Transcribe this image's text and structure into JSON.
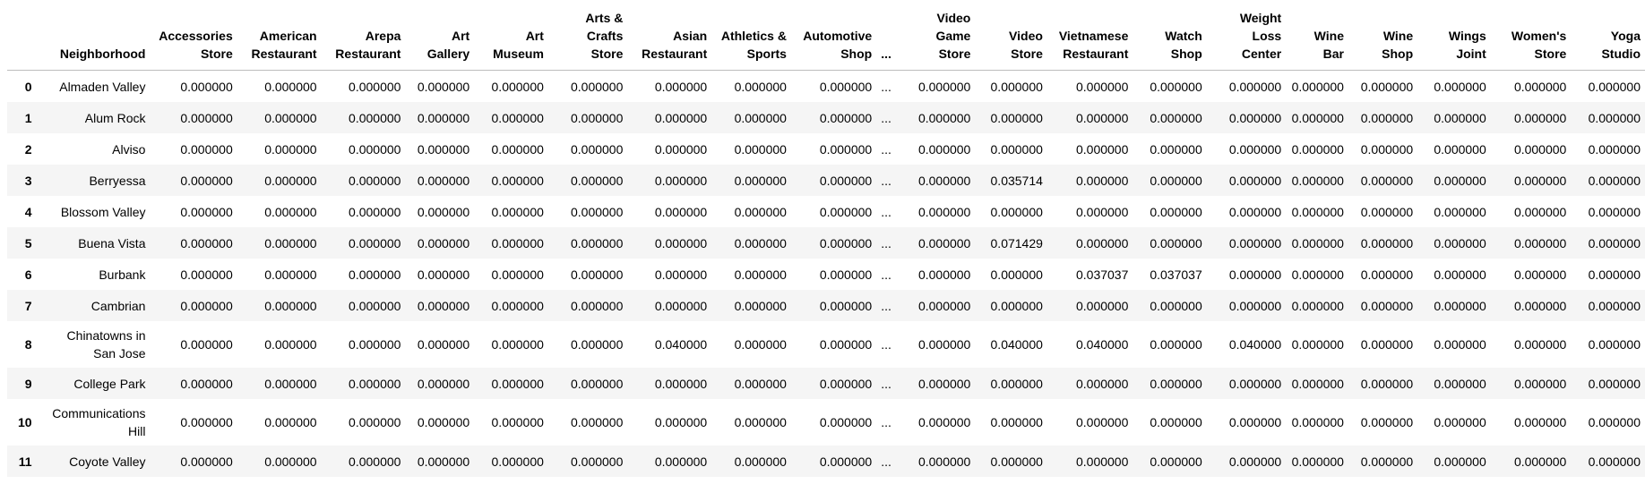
{
  "table": {
    "index_header": "",
    "columns": [
      "Neighborhood",
      "Accessories Store",
      "American Restaurant",
      "Arepa Restaurant",
      "Art Gallery",
      "Art Museum",
      "Arts & Crafts Store",
      "Asian Restaurant",
      "Athletics & Sports",
      "Automotive Shop",
      "...",
      "Video Game Store",
      "Video Store",
      "Vietnamese Restaurant",
      "Watch Shop",
      "Weight Loss Center",
      "Wine Bar",
      "Wine Shop",
      "Wings Joint",
      "Women's Store",
      "Yoga Studio"
    ],
    "rows": [
      {
        "index": "0",
        "cells": [
          "Almaden Valley",
          "0.000000",
          "0.000000",
          "0.000000",
          "0.000000",
          "0.000000",
          "0.000000",
          "0.000000",
          "0.000000",
          "0.000000",
          "...",
          "0.000000",
          "0.000000",
          "0.000000",
          "0.000000",
          "0.000000",
          "0.000000",
          "0.000000",
          "0.000000",
          "0.000000",
          "0.000000"
        ]
      },
      {
        "index": "1",
        "cells": [
          "Alum Rock",
          "0.000000",
          "0.000000",
          "0.000000",
          "0.000000",
          "0.000000",
          "0.000000",
          "0.000000",
          "0.000000",
          "0.000000",
          "...",
          "0.000000",
          "0.000000",
          "0.000000",
          "0.000000",
          "0.000000",
          "0.000000",
          "0.000000",
          "0.000000",
          "0.000000",
          "0.000000"
        ]
      },
      {
        "index": "2",
        "cells": [
          "Alviso",
          "0.000000",
          "0.000000",
          "0.000000",
          "0.000000",
          "0.000000",
          "0.000000",
          "0.000000",
          "0.000000",
          "0.000000",
          "...",
          "0.000000",
          "0.000000",
          "0.000000",
          "0.000000",
          "0.000000",
          "0.000000",
          "0.000000",
          "0.000000",
          "0.000000",
          "0.000000"
        ]
      },
      {
        "index": "3",
        "cells": [
          "Berryessa",
          "0.000000",
          "0.000000",
          "0.000000",
          "0.000000",
          "0.000000",
          "0.000000",
          "0.000000",
          "0.000000",
          "0.000000",
          "...",
          "0.000000",
          "0.035714",
          "0.000000",
          "0.000000",
          "0.000000",
          "0.000000",
          "0.000000",
          "0.000000",
          "0.000000",
          "0.000000"
        ]
      },
      {
        "index": "4",
        "cells": [
          "Blossom Valley",
          "0.000000",
          "0.000000",
          "0.000000",
          "0.000000",
          "0.000000",
          "0.000000",
          "0.000000",
          "0.000000",
          "0.000000",
          "...",
          "0.000000",
          "0.000000",
          "0.000000",
          "0.000000",
          "0.000000",
          "0.000000",
          "0.000000",
          "0.000000",
          "0.000000",
          "0.000000"
        ]
      },
      {
        "index": "5",
        "cells": [
          "Buena Vista",
          "0.000000",
          "0.000000",
          "0.000000",
          "0.000000",
          "0.000000",
          "0.000000",
          "0.000000",
          "0.000000",
          "0.000000",
          "...",
          "0.000000",
          "0.071429",
          "0.000000",
          "0.000000",
          "0.000000",
          "0.000000",
          "0.000000",
          "0.000000",
          "0.000000",
          "0.000000"
        ]
      },
      {
        "index": "6",
        "cells": [
          "Burbank",
          "0.000000",
          "0.000000",
          "0.000000",
          "0.000000",
          "0.000000",
          "0.000000",
          "0.000000",
          "0.000000",
          "0.000000",
          "...",
          "0.000000",
          "0.000000",
          "0.037037",
          "0.037037",
          "0.000000",
          "0.000000",
          "0.000000",
          "0.000000",
          "0.000000",
          "0.000000"
        ]
      },
      {
        "index": "7",
        "cells": [
          "Cambrian",
          "0.000000",
          "0.000000",
          "0.000000",
          "0.000000",
          "0.000000",
          "0.000000",
          "0.000000",
          "0.000000",
          "0.000000",
          "...",
          "0.000000",
          "0.000000",
          "0.000000",
          "0.000000",
          "0.000000",
          "0.000000",
          "0.000000",
          "0.000000",
          "0.000000",
          "0.000000"
        ]
      },
      {
        "index": "8",
        "cells": [
          "Chinatowns in San Jose",
          "0.000000",
          "0.000000",
          "0.000000",
          "0.000000",
          "0.000000",
          "0.000000",
          "0.040000",
          "0.000000",
          "0.000000",
          "...",
          "0.000000",
          "0.040000",
          "0.040000",
          "0.000000",
          "0.040000",
          "0.000000",
          "0.000000",
          "0.000000",
          "0.000000",
          "0.000000"
        ]
      },
      {
        "index": "9",
        "cells": [
          "College Park",
          "0.000000",
          "0.000000",
          "0.000000",
          "0.000000",
          "0.000000",
          "0.000000",
          "0.000000",
          "0.000000",
          "0.000000",
          "...",
          "0.000000",
          "0.000000",
          "0.000000",
          "0.000000",
          "0.000000",
          "0.000000",
          "0.000000",
          "0.000000",
          "0.000000",
          "0.000000"
        ]
      },
      {
        "index": "10",
        "cells": [
          "Communications Hill",
          "0.000000",
          "0.000000",
          "0.000000",
          "0.000000",
          "0.000000",
          "0.000000",
          "0.000000",
          "0.000000",
          "0.000000",
          "...",
          "0.000000",
          "0.000000",
          "0.000000",
          "0.000000",
          "0.000000",
          "0.000000",
          "0.000000",
          "0.000000",
          "0.000000",
          "0.000000"
        ]
      },
      {
        "index": "11",
        "cells": [
          "Coyote Valley",
          "0.000000",
          "0.000000",
          "0.000000",
          "0.000000",
          "0.000000",
          "0.000000",
          "0.000000",
          "0.000000",
          "0.000000",
          "...",
          "0.000000",
          "0.000000",
          "0.000000",
          "0.000000",
          "0.000000",
          "0.000000",
          "0.000000",
          "0.000000",
          "0.000000",
          "0.000000"
        ]
      }
    ]
  }
}
